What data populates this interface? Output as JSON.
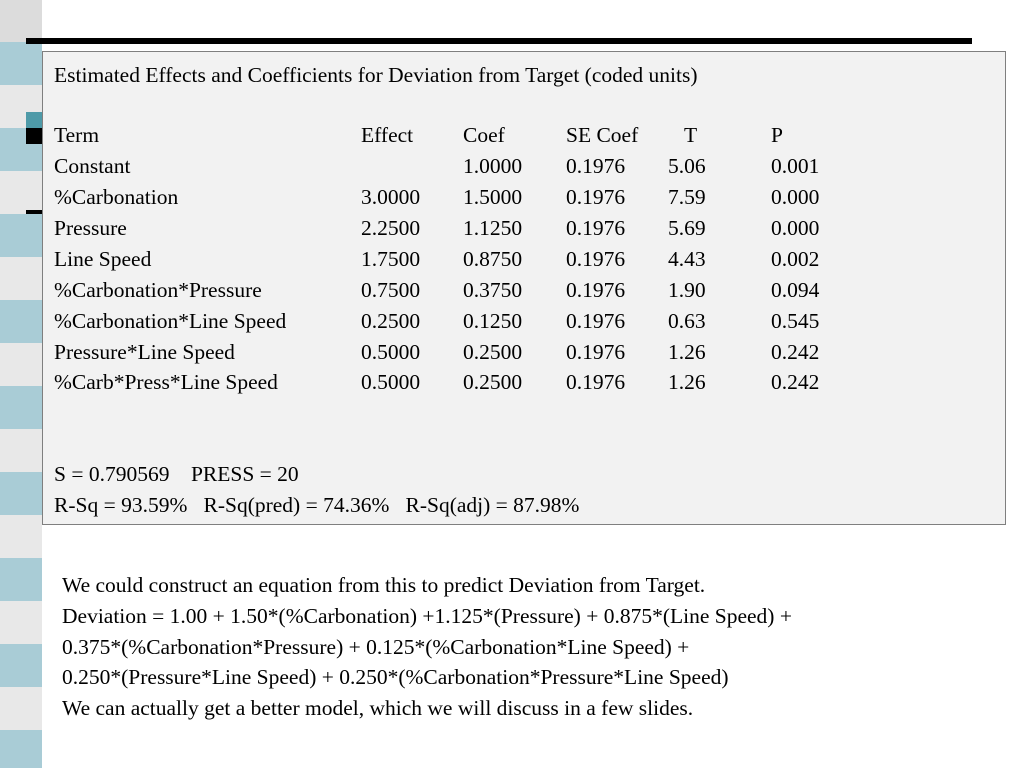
{
  "panel": {
    "title": "Estimated Effects and Coefficients for Deviation from Target (coded units)",
    "headers": {
      "term": "Term",
      "effect": "Effect",
      "coef": "Coef",
      "se_coef": "SE Coef",
      "t": "T",
      "p": "P"
    },
    "rows": [
      {
        "term": "Constant",
        "effect": "",
        "coef": "1.0000",
        "se_coef": "0.1976",
        "t": "5.06",
        "p": "0.001"
      },
      {
        "term": "%Carbonation",
        "effect": "3.0000",
        "coef": "1.5000",
        "se_coef": "0.1976",
        "t": "7.59",
        "p": "0.000"
      },
      {
        "term": "Pressure",
        "effect": "2.2500",
        "coef": "1.1250",
        "se_coef": "0.1976",
        "t": "5.69",
        "p": "0.000"
      },
      {
        "term": "Line Speed",
        "effect": "1.7500",
        "coef": "0.8750",
        "se_coef": "0.1976",
        "t": "4.43",
        "p": "0.002"
      },
      {
        "term": "%Carbonation*Pressure",
        "effect": "0.7500",
        "coef": "0.3750",
        "se_coef": "0.1976",
        "t": "1.90",
        "p": "0.094"
      },
      {
        "term": "%Carbonation*Line Speed",
        "effect": "0.2500",
        "coef": "0.1250",
        "se_coef": "0.1976",
        "t": "0.63",
        "p": "0.545"
      },
      {
        "term": "Pressure*Line Speed",
        "effect": "0.5000",
        "coef": "0.2500",
        "se_coef": "0.1976",
        "t": "1.26",
        "p": "0.242"
      },
      {
        "term": "%Carb*Press*Line Speed",
        "effect": "0.5000",
        "coef": "0.2500",
        "se_coef": "0.1976",
        "t": "1.26",
        "p": "0.242"
      }
    ],
    "stats_line1": "S = 0.790569    PRESS = 20",
    "stats_line2": "R-Sq = 93.59%   R-Sq(pred) = 74.36%   R-Sq(adj) = 87.98%"
  },
  "body": {
    "lines": [
      "We could construct an equation from this to predict Deviation from Target.",
      "Deviation = 1.00 + 1.50*(%Carbonation) +1.125*(Pressure) + 0.875*(Line Speed) +",
      "0.375*(%Carbonation*Pressure) + 0.125*(%Carbonation*Line Speed) +",
      "0.250*(Pressure*Line Speed) + 0.250*(%Carbonation*Pressure*Line Speed)",
      "We can actually get a better model, which we will discuss in a few slides."
    ]
  },
  "colors": {
    "panel_bg": "#f2f2f2",
    "stripe_teal": "#a9ccd6",
    "stripe_gray": "#dcdcdc",
    "accent_teal": "#4e9aa8"
  }
}
